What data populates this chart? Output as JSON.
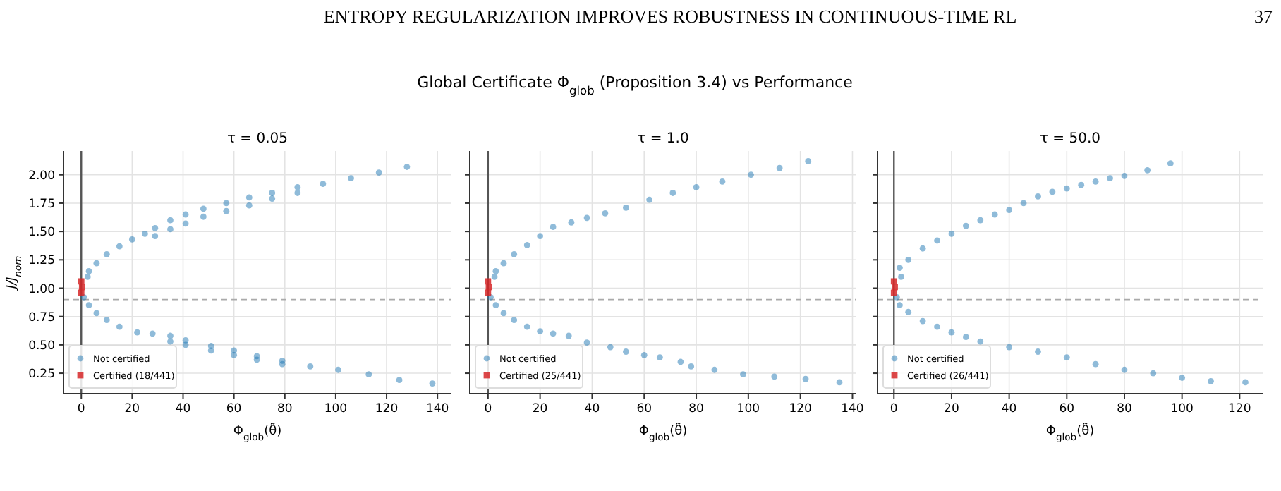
{
  "chart_data": [
    {
      "type": "scatter",
      "title": "τ = 0.05",
      "xlabel": "Φ$_{glob}$(θ̃)",
      "ylabel": "J/J$_{nom}$",
      "annotations": [
        "ENTROPY REGULARIZATION IMPROVES ROBUSTNESS IN CONTINUOUS-TIME RL",
        "37",
        "Global Certificate Φ$_{glob}$ (Proposition 3.4) vs Performance"
      ],
      "xlim": [
        -7,
        145.5
      ],
      "ylim": [
        0.07,
        2.21
      ],
      "xticks": [
        0,
        20,
        40,
        60,
        80,
        100,
        120,
        140
      ],
      "yticks": [
        {
          "value": 0.25,
          "label": "0.25"
        },
        {
          "value": 0.5,
          "label": "0.50"
        },
        {
          "value": 0.75,
          "label": "0.75"
        },
        {
          "value": 1,
          "label": "1.00"
        },
        {
          "value": 1.25,
          "label": "1.25"
        },
        {
          "value": 1.5,
          "label": "1.50"
        },
        {
          "value": 1.75,
          "label": "1.75"
        },
        {
          "value": 2,
          "label": "2.00"
        }
      ],
      "grid": true,
      "legend": "bottom left",
      "ref_lines": [
        {
          "axis": "x",
          "value": 0,
          "color": "#555555",
          "line_style": "solid"
        },
        {
          "axis": "y",
          "value": 0.9,
          "color": "#aaaaaa",
          "line_style": "dashed"
        }
      ],
      "series": [
        {
          "name": "Not certified",
          "color": "#1f77b4",
          "marker": "circle",
          "x": [
            2.5,
            3,
            6,
            10,
            15,
            20,
            25,
            29,
            29,
            35,
            35,
            41,
            41,
            48,
            48,
            57,
            57,
            66,
            66,
            75,
            75,
            85,
            85,
            95,
            106,
            117,
            128,
            1,
            3,
            6,
            10,
            15,
            22,
            28,
            35,
            35,
            41,
            41,
            51,
            51,
            60,
            60,
            69,
            69,
            79,
            79,
            90,
            101,
            113,
            125,
            138
          ],
          "values": [
            1.1,
            1.15,
            1.22,
            1.3,
            1.37,
            1.43,
            1.48,
            1.46,
            1.53,
            1.52,
            1.6,
            1.57,
            1.65,
            1.63,
            1.7,
            1.68,
            1.75,
            1.73,
            1.8,
            1.79,
            1.84,
            1.84,
            1.89,
            1.92,
            1.97,
            2.02,
            2.07,
            0.92,
            0.85,
            0.78,
            0.72,
            0.66,
            0.61,
            0.6,
            0.53,
            0.58,
            0.5,
            0.54,
            0.45,
            0.49,
            0.41,
            0.45,
            0.37,
            0.4,
            0.33,
            0.36,
            0.31,
            0.28,
            0.24,
            0.19,
            0.16
          ]
        },
        {
          "name": "Certified (18/441)",
          "color": "#d62728",
          "marker": "square",
          "x": [
            0,
            0.3,
            0
          ],
          "values": [
            0.96,
            1.01,
            1.06
          ]
        }
      ]
    },
    {
      "type": "scatter",
      "title": "τ = 1.0",
      "xlabel": "Φ$_{glob}$(θ̃)",
      "tick_labels": "x",
      "xlim": [
        -7,
        141.5
      ],
      "ylim": [
        0.07,
        2.21
      ],
      "xticks": [
        0,
        20,
        40,
        60,
        80,
        100,
        120,
        140
      ],
      "yticks": [
        {
          "value": 0.25,
          "label": null
        },
        {
          "value": 0.5,
          "label": null
        },
        {
          "value": 0.75,
          "label": null
        },
        {
          "value": 1,
          "label": null
        },
        {
          "value": 1.25,
          "label": null
        },
        {
          "value": 1.5,
          "label": null
        },
        {
          "value": 1.75,
          "label": null
        },
        {
          "value": 2,
          "label": null
        }
      ],
      "grid": true,
      "legend": "bottom left",
      "ref_lines": [
        {
          "axis": "x",
          "value": 0,
          "color": "#555555",
          "line_style": "solid"
        },
        {
          "axis": "y",
          "value": 0.9,
          "color": "#aaaaaa",
          "line_style": "dashed"
        }
      ],
      "series": [
        {
          "name": "Not certified",
          "color": "#1f77b4",
          "marker": "circle",
          "x": [
            2.5,
            3,
            6,
            10,
            15,
            20,
            25,
            32,
            38,
            45,
            53,
            62,
            71,
            80,
            90,
            101,
            112,
            123,
            1,
            3,
            6,
            10,
            15,
            20,
            25,
            31,
            38,
            47,
            53,
            60,
            66,
            74,
            78,
            87,
            98,
            110,
            122,
            135
          ],
          "values": [
            1.1,
            1.15,
            1.22,
            1.3,
            1.38,
            1.46,
            1.54,
            1.58,
            1.62,
            1.66,
            1.71,
            1.78,
            1.84,
            1.89,
            1.94,
            2.0,
            2.06,
            2.12,
            0.92,
            0.85,
            0.78,
            0.72,
            0.66,
            0.62,
            0.6,
            0.58,
            0.52,
            0.48,
            0.44,
            0.41,
            0.39,
            0.35,
            0.31,
            0.28,
            0.24,
            0.22,
            0.2,
            0.17
          ]
        },
        {
          "name": "Certified (25/441)",
          "color": "#d62728",
          "marker": "square",
          "x": [
            0,
            0.3,
            0
          ],
          "values": [
            0.96,
            1.01,
            1.06
          ]
        }
      ]
    },
    {
      "type": "scatter",
      "title": "τ = 50.0",
      "xlabel": "Φ$_{glob}$(θ̃)",
      "tick_labels": "x",
      "xlim": [
        -5.7,
        128
      ],
      "ylim": [
        0.07,
        2.21
      ],
      "xticks": [
        0,
        20,
        40,
        60,
        80,
        100,
        120
      ],
      "yticks": [
        {
          "value": 0.25,
          "label": null
        },
        {
          "value": 0.5,
          "label": null
        },
        {
          "value": 0.75,
          "label": null
        },
        {
          "value": 1,
          "label": null
        },
        {
          "value": 1.25,
          "label": null
        },
        {
          "value": 1.5,
          "label": null
        },
        {
          "value": 1.75,
          "label": null
        },
        {
          "value": 2,
          "label": null
        }
      ],
      "grid": true,
      "legend": "bottom left",
      "ref_lines": [
        {
          "axis": "x",
          "value": 0,
          "color": "#555555",
          "line_style": "solid"
        },
        {
          "axis": "y",
          "value": 0.9,
          "color": "#aaaaaa",
          "line_style": "dashed"
        }
      ],
      "series": [
        {
          "name": "Not certified",
          "color": "#1f77b4",
          "marker": "circle",
          "x": [
            2.5,
            2,
            5,
            10,
            15,
            20,
            25,
            30,
            35,
            40,
            45,
            50,
            55,
            60,
            65,
            70,
            75,
            80,
            88,
            96,
            1,
            2,
            5,
            10,
            15,
            20,
            25,
            30,
            40,
            50,
            60,
            70,
            80,
            90,
            100,
            110,
            122
          ],
          "values": [
            1.1,
            1.18,
            1.25,
            1.35,
            1.42,
            1.48,
            1.55,
            1.6,
            1.65,
            1.69,
            1.75,
            1.81,
            1.85,
            1.88,
            1.91,
            1.94,
            1.97,
            1.99,
            2.04,
            2.1,
            0.92,
            0.85,
            0.79,
            0.71,
            0.66,
            0.61,
            0.57,
            0.53,
            0.48,
            0.44,
            0.39,
            0.33,
            0.28,
            0.25,
            0.21,
            0.18,
            0.17
          ]
        },
        {
          "name": "Certified (26/441)",
          "color": "#d62728",
          "marker": "square",
          "x": [
            0,
            0.3,
            0
          ],
          "values": [
            0.96,
            1.01,
            1.06
          ]
        }
      ]
    }
  ]
}
